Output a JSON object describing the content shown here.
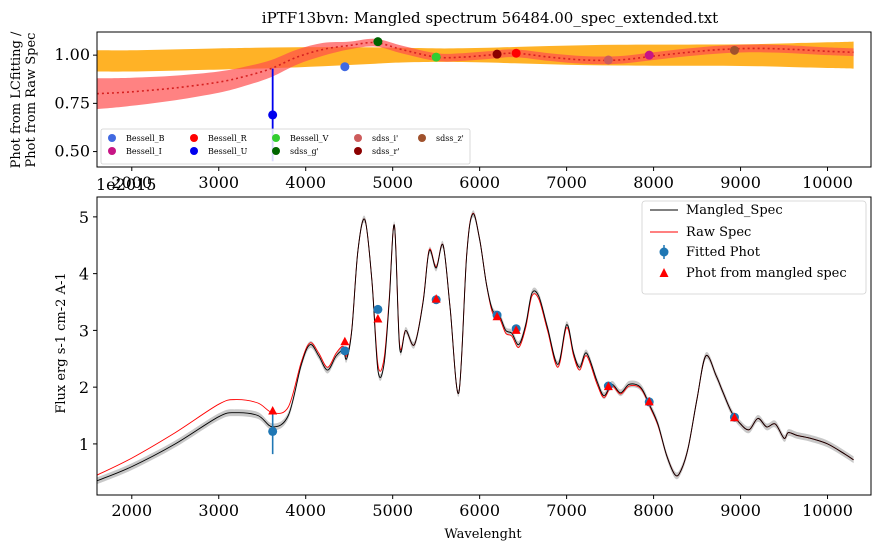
{
  "chart_data": [
    {
      "type": "line",
      "title": "iPTF13bvn: Mangled spectrum 56484.00_spec_extended.txt",
      "ylabel_line1": "Phot from LCfitting /",
      "ylabel_line2": "Phot from Raw Spec",
      "xlim": [
        1600,
        10500
      ],
      "ylim": [
        0.42,
        1.12
      ],
      "xticks": [
        "2000",
        "3000",
        "4000",
        "5000",
        "6000",
        "7000",
        "8000",
        "9000",
        "10000"
      ],
      "yticks": [
        "0.50",
        "0.75",
        "1.00"
      ],
      "overlap_text": "1e2015",
      "curve": {
        "x": [
          1600,
          2000,
          2500,
          3000,
          3300,
          3600,
          3900,
          4200,
          4500,
          4800,
          5100,
          5500,
          5800,
          6100,
          6400,
          6800,
          7200,
          7600,
          8000,
          8400,
          8800,
          9200,
          9600,
          10000,
          10300
        ],
        "y": [
          0.8,
          0.81,
          0.83,
          0.86,
          0.89,
          0.93,
          0.99,
          1.03,
          1.05,
          1.065,
          1.03,
          0.99,
          0.99,
          1.0,
          1.01,
          0.99,
          0.975,
          0.975,
          0.995,
          1.015,
          1.03,
          1.035,
          1.03,
          1.02,
          1.015
        ]
      },
      "points": [
        {
          "name": "Bessell_B",
          "x": 4450,
          "y": 0.94,
          "color": "#4169e1"
        },
        {
          "name": "Bessell_I",
          "x": 7950,
          "y": 1.0,
          "color": "#c71585"
        },
        {
          "name": "Bessell_R",
          "x": 6420,
          "y": 1.01,
          "color": "#ff0000"
        },
        {
          "name": "Bessell_U",
          "x": 3620,
          "y": 0.69,
          "color": "#0000ee",
          "err": 0.24
        },
        {
          "name": "Bessell_V",
          "x": 5500,
          "y": 0.99,
          "color": "#32cd32"
        },
        {
          "name": "sdss_g'",
          "x": 4830,
          "y": 1.07,
          "color": "#006400"
        },
        {
          "name": "sdss_i'",
          "x": 7480,
          "y": 0.975,
          "color": "#cd5c5c"
        },
        {
          "name": "sdss_r'",
          "x": 6200,
          "y": 1.005,
          "color": "#8b0000"
        },
        {
          "name": "sdss_z'",
          "x": 8930,
          "y": 1.025,
          "color": "#a0522d"
        }
      ],
      "legend": [
        "Bessell_B",
        "Bessell_I",
        "Bessell_R",
        "Bessell_U",
        "Bessell_V",
        "sdss_g'",
        "sdss_i'",
        "sdss_r'",
        "sdss_z'"
      ],
      "legend_loc": "lower-left"
    },
    {
      "type": "line",
      "xlabel": "Wavelenght",
      "ylabel": "Flux erg s-1 cm-2 A-1",
      "xlim": [
        1600,
        10500
      ],
      "ylim": [
        0.1,
        5.35
      ],
      "xticks": [
        "2000",
        "3000",
        "4000",
        "5000",
        "6000",
        "7000",
        "8000",
        "9000",
        "10000"
      ],
      "yticks": [
        "1",
        "2",
        "3",
        "4",
        "5"
      ],
      "legend_loc": "top-right",
      "series": [
        {
          "name": "Mangled_Spec",
          "color": "#000000",
          "x": [
            1600,
            2000,
            2500,
            3000,
            3200,
            3450,
            3620,
            3800,
            3950,
            4050,
            4150,
            4250,
            4350,
            4430,
            4470,
            4530,
            4600,
            4680,
            4760,
            4830,
            4900,
            4960,
            5020,
            5080,
            5150,
            5250,
            5350,
            5420,
            5500,
            5580,
            5660,
            5760,
            5850,
            5920,
            6000,
            6080,
            6150,
            6230,
            6300,
            6370,
            6450,
            6530,
            6600,
            6680,
            6780,
            6900,
            7000,
            7080,
            7150,
            7230,
            7350,
            7430,
            7520,
            7620,
            7720,
            7850,
            7950,
            8050,
            8150,
            8250,
            8320,
            8400,
            8500,
            8600,
            8720,
            8800,
            8900,
            9000,
            9100,
            9200,
            9300,
            9400,
            9500,
            9550,
            9650,
            9800,
            10000,
            10200,
            10300
          ],
          "y": [
            0.35,
            0.6,
            1.0,
            1.48,
            1.55,
            1.5,
            1.3,
            1.5,
            2.4,
            2.75,
            2.55,
            2.3,
            2.55,
            2.65,
            2.5,
            3.0,
            4.4,
            4.95,
            3.9,
            2.3,
            2.4,
            3.5,
            4.85,
            2.7,
            3.0,
            2.75,
            3.5,
            4.4,
            4.1,
            4.5,
            3.4,
            1.9,
            4.3,
            5.05,
            4.6,
            3.8,
            3.35,
            3.25,
            3.0,
            2.95,
            2.75,
            3.1,
            3.65,
            3.6,
            3.05,
            2.4,
            3.1,
            2.6,
            2.35,
            2.6,
            2.1,
            1.85,
            2.05,
            1.9,
            2.05,
            2.0,
            1.7,
            1.35,
            0.8,
            0.45,
            0.55,
            0.95,
            1.8,
            2.55,
            2.2,
            1.9,
            1.55,
            1.35,
            1.25,
            1.45,
            1.3,
            1.35,
            1.1,
            1.2,
            1.15,
            1.1,
            1.0,
            0.82,
            0.72
          ]
        },
        {
          "name": "Raw Spec",
          "color": "#ff0000",
          "x": [
            1600,
            2000,
            2500,
            3000,
            3200,
            3450,
            3620,
            3800,
            3950,
            4050,
            4150,
            4250,
            4350,
            4430,
            4470,
            4530,
            4600,
            4680,
            4760,
            4830,
            4900,
            4960,
            5020,
            5080,
            5150,
            5250,
            5350,
            5420,
            5500,
            5580,
            5660,
            5760,
            5850,
            5920,
            6000,
            6080,
            6150,
            6230,
            6300,
            6370,
            6450,
            6530,
            6600,
            6680,
            6780,
            6900,
            7000,
            7080,
            7150,
            7230,
            7350,
            7430,
            7520,
            7620,
            7720,
            7850,
            7950,
            8050,
            8150,
            8250,
            8320,
            8400,
            8500,
            8600,
            8720,
            8800,
            8900,
            9000,
            9100,
            9200,
            9300,
            9400,
            9500,
            9550,
            9650,
            9800,
            10000,
            10200,
            10300
          ],
          "y": [
            0.45,
            0.75,
            1.2,
            1.7,
            1.78,
            1.72,
            1.55,
            1.65,
            2.45,
            2.78,
            2.6,
            2.35,
            2.6,
            2.72,
            2.55,
            3.02,
            4.4,
            4.95,
            3.9,
            2.4,
            2.5,
            3.55,
            4.85,
            2.75,
            3.0,
            2.75,
            3.52,
            4.42,
            4.12,
            4.5,
            3.4,
            1.9,
            4.32,
            5.06,
            4.6,
            3.8,
            3.3,
            3.2,
            2.95,
            2.9,
            2.7,
            3.05,
            3.6,
            3.55,
            3.0,
            2.35,
            3.05,
            2.55,
            2.3,
            2.55,
            2.05,
            1.82,
            2.02,
            1.88,
            2.02,
            1.98,
            1.68,
            1.33,
            0.8,
            0.45,
            0.55,
            0.95,
            1.8,
            2.55,
            2.2,
            1.9,
            1.55,
            1.35,
            1.25,
            1.45,
            1.3,
            1.35,
            1.1,
            1.2,
            1.15,
            1.1,
            1.0,
            0.82,
            0.72
          ]
        }
      ],
      "fitted_phot": {
        "name": "Fitted Phot",
        "color": "#1f77b4",
        "x": [
          3620,
          4450,
          4830,
          5500,
          6200,
          6420,
          7480,
          7950,
          8930
        ],
        "y": [
          1.22,
          2.64,
          3.37,
          3.54,
          3.27,
          3.03,
          2.02,
          1.74,
          1.47
        ],
        "err": [
          0.4,
          0.0,
          0.0,
          0.0,
          0.0,
          0.0,
          0.0,
          0.0,
          0.0
        ]
      },
      "mangled_phot": {
        "name": "Phot from mangled spec",
        "color": "#ff0000",
        "x": [
          3620,
          4450,
          4830,
          5500,
          6200,
          6420,
          7480,
          7950,
          8930
        ],
        "y": [
          1.58,
          2.8,
          3.2,
          3.55,
          3.24,
          3.0,
          2.01,
          1.74,
          1.46
        ]
      }
    }
  ]
}
